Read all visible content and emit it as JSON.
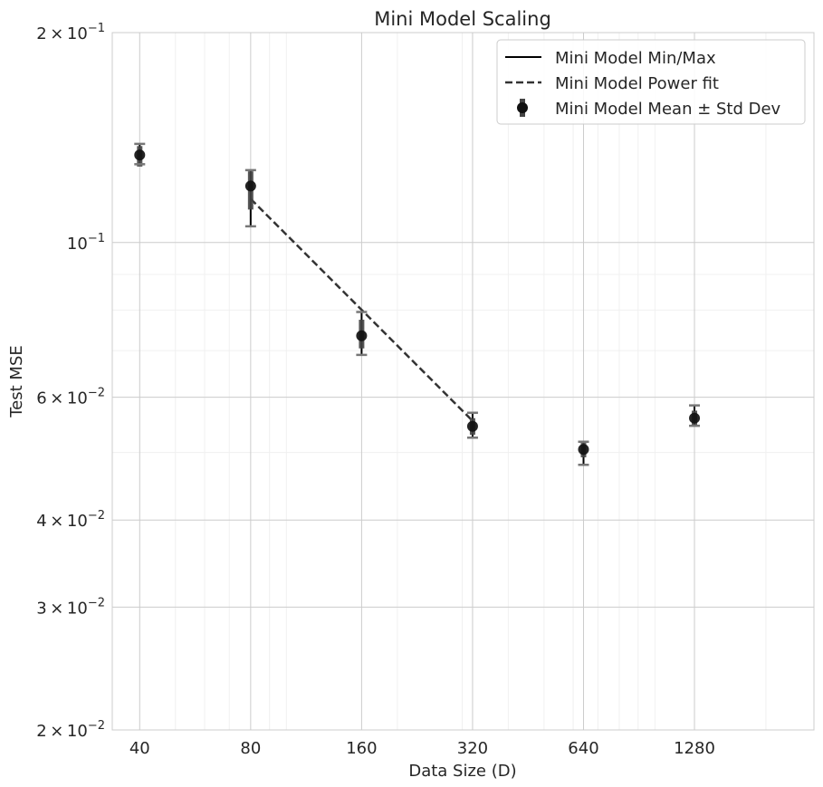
{
  "chart_data": {
    "type": "scatter",
    "title": "Mini Model Scaling",
    "xlabel": "Data Size (D)",
    "ylabel": "Test MSE",
    "xscale": "log",
    "yscale": "log",
    "xlim": [
      33.7,
      2700
    ],
    "ylim": [
      0.02,
      0.2
    ],
    "grid": true,
    "legend_position": "top-right",
    "x_ticks": [
      40,
      80,
      160,
      320,
      640,
      1280
    ],
    "x_tick_labels": [
      "40",
      "80",
      "160",
      "320",
      "640",
      "1280"
    ],
    "y_ticks": [
      {
        "value": 0.2,
        "mantissa": "2",
        "exponent": "−1"
      },
      {
        "value": 0.1,
        "mantissa": "",
        "exponent": "−1"
      },
      {
        "value": 0.06,
        "mantissa": "6",
        "exponent": "−2"
      },
      {
        "value": 0.04,
        "mantissa": "4",
        "exponent": "−2"
      },
      {
        "value": 0.03,
        "mantissa": "3",
        "exponent": "−2"
      },
      {
        "value": 0.02,
        "mantissa": "2",
        "exponent": "−2"
      }
    ],
    "legend": {
      "minmax": "Mini Model Min/Max",
      "fit": "Mini Model Power fit",
      "mean": "Mini Model Mean ± Std Dev"
    },
    "series": [
      {
        "name": "Mini Model Mean ± Std Dev",
        "points": [
          {
            "x": 40,
            "mean": 0.1335,
            "std_low": 0.1285,
            "std_high": 0.1375,
            "min": 0.1295,
            "max": 0.1385
          },
          {
            "x": 80,
            "mean": 0.1205,
            "std_low": 0.1115,
            "std_high": 0.1265,
            "min": 0.1055,
            "max": 0.127
          },
          {
            "x": 160,
            "mean": 0.0735,
            "std_low": 0.0705,
            "std_high": 0.0775,
            "min": 0.069,
            "max": 0.0795
          },
          {
            "x": 320,
            "mean": 0.0545,
            "std_low": 0.053,
            "std_high": 0.056,
            "min": 0.0525,
            "max": 0.057
          },
          {
            "x": 640,
            "mean": 0.0505,
            "std_low": 0.0492,
            "std_high": 0.0516,
            "min": 0.048,
            "max": 0.0518
          },
          {
            "x": 1280,
            "mean": 0.056,
            "std_low": 0.0547,
            "std_high": 0.0574,
            "min": 0.0546,
            "max": 0.0584
          }
        ]
      },
      {
        "name": "Mini Model Power fit",
        "points": [
          {
            "x": 80,
            "y": 0.1155
          },
          {
            "x": 320,
            "y": 0.0555
          }
        ]
      }
    ]
  }
}
